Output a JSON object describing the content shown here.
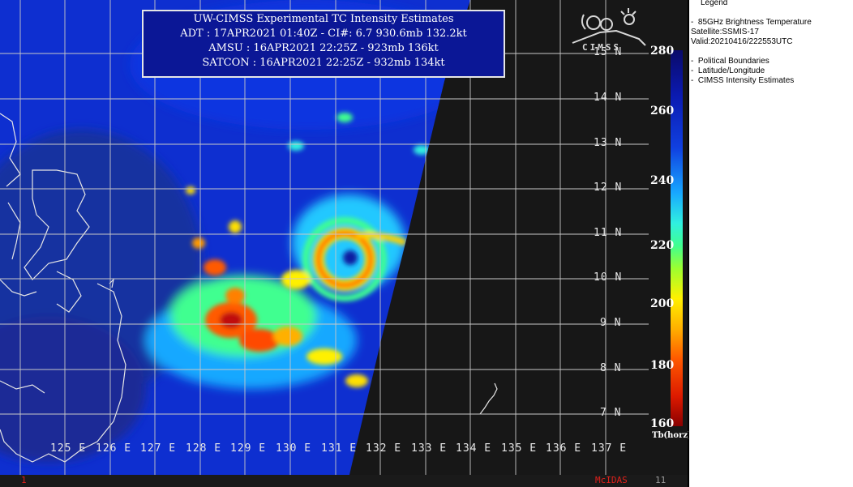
{
  "info": {
    "title": "UW-CIMSS Experimental TC Intensity Estimates",
    "adt": "ADT : 17APR2021 01:40Z -  CI#: 6.7   930.6mb   132.2kt",
    "amsu": "AMSU : 16APR2021 22:25Z -  923mb   136kt",
    "satcon": "SATCON : 16APR2021 22:25Z -  932mb   134kt"
  },
  "lat_labels": [
    "15 N",
    "14 N",
    "13 N",
    "12 N",
    "11 N",
    "10 N",
    "9 N",
    "8 N",
    "7 N"
  ],
  "lon_labels": [
    "125 E",
    "126 E",
    "127 E",
    "128 E",
    "129 E",
    "130 E",
    "131 E",
    "132 E",
    "133 E",
    "134 E",
    "135 E",
    "136 E",
    "137 E"
  ],
  "colorbar": {
    "ticks": [
      "280",
      "260",
      "240",
      "220",
      "200",
      "180",
      "160"
    ],
    "unit": "Tb(horz)",
    "range": [
      160,
      280
    ]
  },
  "legend": {
    "title": "Legend",
    "product": "85GHz Brightness Temperature",
    "satellite": "Satellite:SSMIS-17",
    "valid": "Valid:20210416/222553UTC",
    "overlays": [
      "Political Boundaries",
      "Latitude/Longitude",
      "CIMSS Intensity Estimates"
    ]
  },
  "logo_text": "CIMSS",
  "footer": {
    "left_num": "1",
    "mcidas": "McIDAS",
    "right_num": "11"
  },
  "colors": {
    "info_box_bg": "#0b1796",
    "grid": "#c8c8c8",
    "mcidas": "#e0201a",
    "footer_right": "#9a9a9a"
  }
}
